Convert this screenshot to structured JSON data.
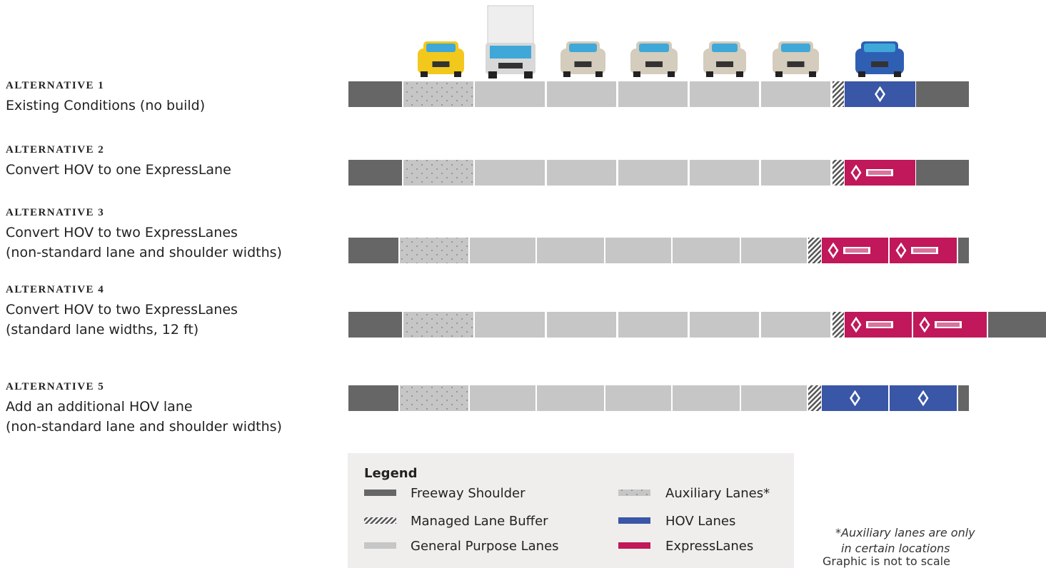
{
  "alternatives": [
    {
      "title": "ALTERNATIVE 1",
      "description": [
        "Existing Conditions (no build)"
      ]
    },
    {
      "title": "ALTERNATIVE 2",
      "description": [
        "Convert HOV to one ExpressLane"
      ]
    },
    {
      "title": "ALTERNATIVE 3",
      "description": [
        "Convert HOV to two ExpressLanes",
        "(non-standard lane and shoulder widths)"
      ]
    },
    {
      "title": "ALTERNATIVE 4",
      "description": [
        "Convert HOV to two ExpressLanes",
        "(standard lane widths, 12 ft)"
      ]
    },
    {
      "title": "ALTERNATIVE 5",
      "description": [
        "Add an additional HOV lane",
        "(non-standard lane and shoulder widths)"
      ]
    }
  ],
  "legend": {
    "title": "Legend",
    "items": [
      "Freeway Shoulder",
      "Managed Lane Buffer",
      "General Purpose Lanes",
      "Auxiliary Lanes*",
      "HOV Lanes",
      "ExpressLanes"
    ]
  },
  "notes": {
    "footnote": [
      "*Auxiliary lanes are only",
      "in certain locations"
    ],
    "scale": "Graphic is not to scale"
  }
}
